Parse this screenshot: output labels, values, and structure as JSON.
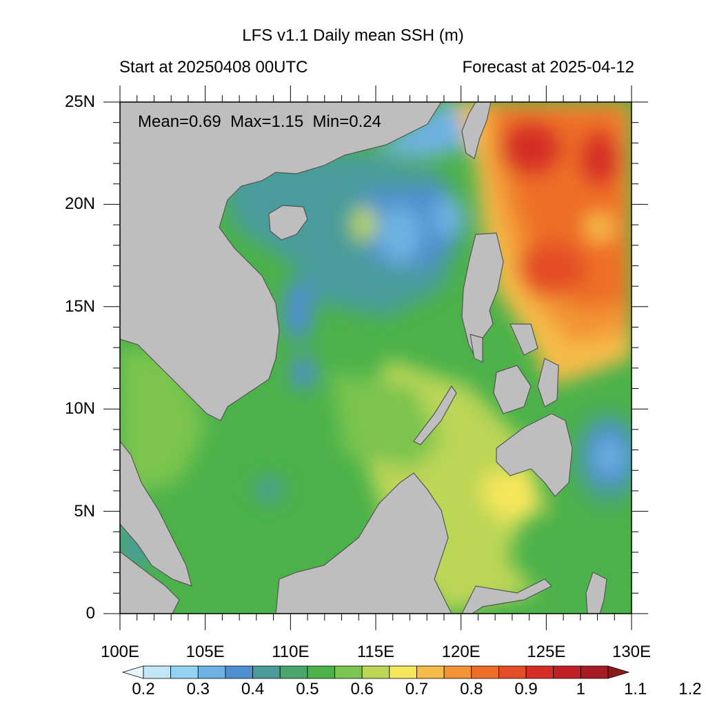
{
  "title": "LFS v1.1 Daily mean SSH (m)",
  "subtitle_left": "Start at 20250408 00UTC",
  "subtitle_right": "Forecast at 2025-04-12",
  "stats": {
    "mean": "Mean=0.69",
    "max": "Max=1.15",
    "min": "Min=0.24"
  },
  "lat_labels": [
    "25N",
    "20N",
    "15N",
    "10N",
    "5N",
    "0"
  ],
  "lon_labels": [
    "100E",
    "105E",
    "110E",
    "115E",
    "120E",
    "125E",
    "130E"
  ],
  "colorbar": {
    "labels": [
      "0.2",
      "0.3",
      "0.4",
      "0.5",
      "0.6",
      "0.7",
      "0.8",
      "0.9",
      "1",
      "1.1",
      "1.2"
    ],
    "colors": [
      "#e8f6fc",
      "#c0e6f7",
      "#94d2f2",
      "#6db2e3",
      "#4d8fcf",
      "#4a9c9b",
      "#4aa66c",
      "#4bb24a",
      "#7cc450",
      "#bcd656",
      "#f6e65c",
      "#f6bc4a",
      "#f29436",
      "#ee6e28",
      "#e44e26",
      "#d62e26",
      "#c02026",
      "#a61c22",
      "#8c1818"
    ]
  },
  "land_color": "#bebebe",
  "map_data": {
    "lon_range": [
      100,
      130
    ],
    "lat_range": [
      0,
      25
    ],
    "variable": "Daily mean SSH (m)"
  }
}
